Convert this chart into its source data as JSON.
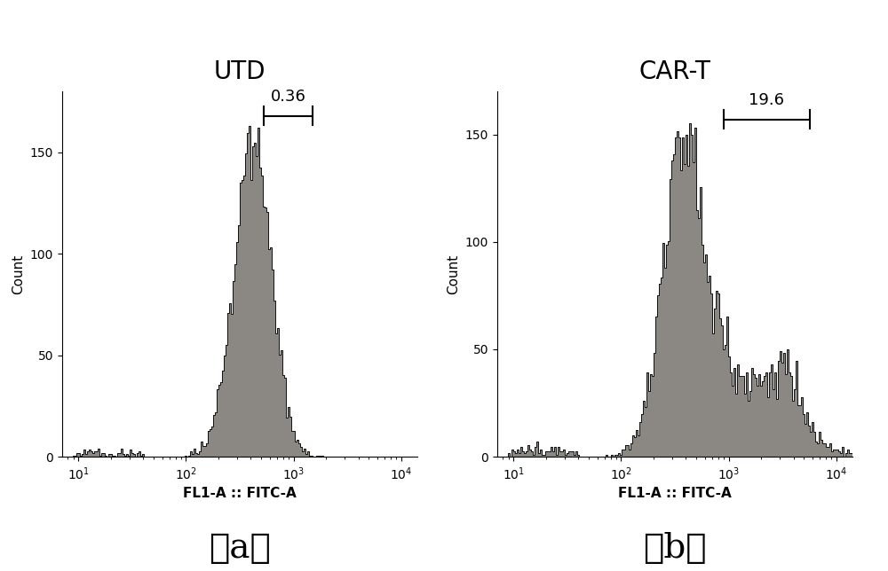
{
  "title_a": "UTD",
  "title_b": "CAR-T",
  "xlabel": "FL1-A :: FITC-A",
  "ylabel": "Count",
  "label_a": "（a）",
  "label_b": "（b）",
  "annotation_a": "0.36",
  "annotation_b": "19.6",
  "ylim_a": [
    0,
    180
  ],
  "ylim_b": [
    0,
    170
  ],
  "yticks_a": [
    0,
    50,
    100,
    150
  ],
  "yticks_b": [
    0,
    50,
    100,
    150
  ],
  "fill_color": "#8b8782",
  "line_color": "#111111",
  "bg_color": "#ffffff",
  "title_fontsize": 20,
  "axis_label_fontsize": 11,
  "tick_fontsize": 10,
  "annot_fontsize": 13,
  "panel_label_fontsize": 28,
  "xlog_min": 0.85,
  "xlog_max": 4.15,
  "utd_peak_log": 2.62,
  "utd_sigma": 0.175,
  "utd_n": 6000,
  "utd_noise_n": 100,
  "utd_peak_max": 163,
  "cart_peak1_log": 2.58,
  "cart_sigma1": 0.195,
  "cart_n1": 4800,
  "cart_peak2_log": 3.32,
  "cart_sigma2": 0.32,
  "cart_n2": 2000,
  "cart_peak3_log": 2.97,
  "cart_sigma3": 0.06,
  "cart_n3": 180,
  "cart_peak4_log": 3.55,
  "cart_sigma4": 0.06,
  "cart_n4": 160,
  "cart_noise_n": 120,
  "cart_peak_max": 155,
  "nbins": 200
}
